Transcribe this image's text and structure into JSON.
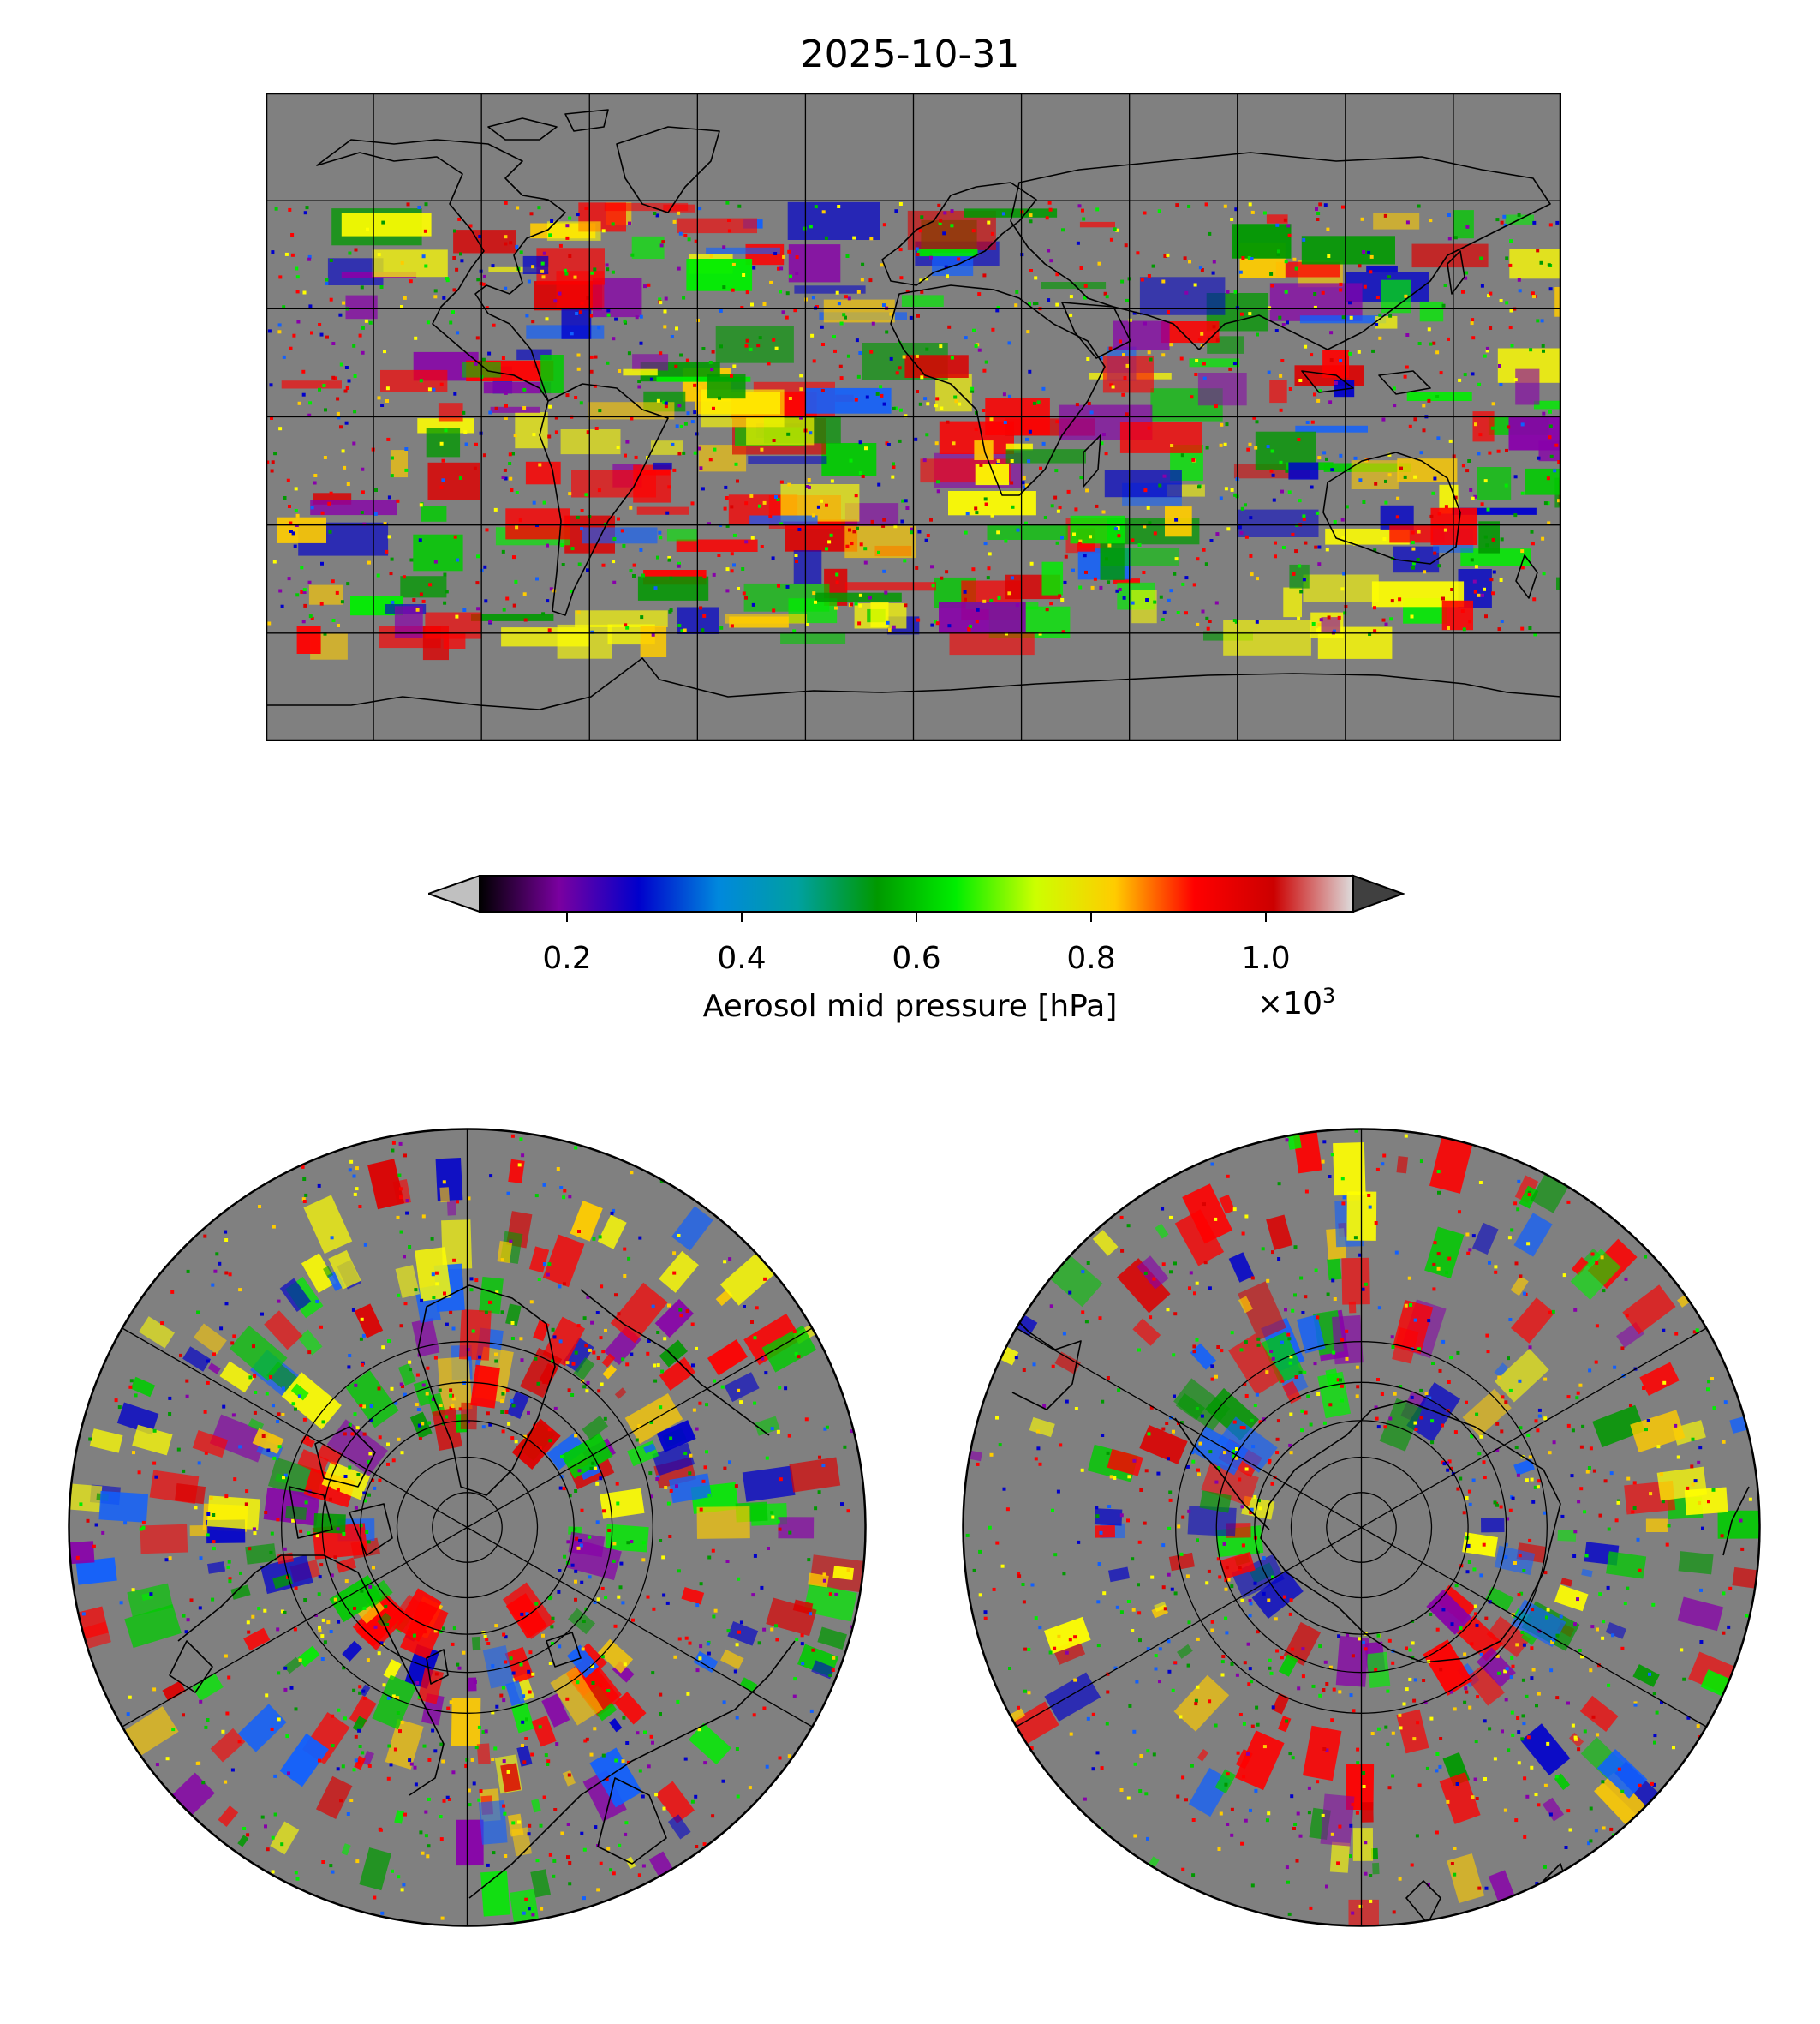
{
  "figure": {
    "title": "2025-10-31"
  },
  "colorbar": {
    "label": "Aerosol mid pressure [hPa]",
    "multiplier_base": "×10",
    "multiplier_exponent": "3",
    "ticks": [
      {
        "value": 0.2,
        "label": "0.2"
      },
      {
        "value": 0.4,
        "label": "0.4"
      },
      {
        "value": 0.6,
        "label": "0.6"
      },
      {
        "value": 0.8,
        "label": "0.8"
      },
      {
        "value": 1.0,
        "label": "1.0"
      }
    ],
    "range": [
      0.1,
      1.1
    ],
    "colormap": [
      "#000000",
      "#7a00a0",
      "#0000cc",
      "#0088dd",
      "#00a0a0",
      "#009900",
      "#00ee00",
      "#ccff00",
      "#ffcc00",
      "#ff0000",
      "#cc0000",
      "#dddddd"
    ],
    "under_color": "#c0c0c0",
    "over_color": "#404040",
    "extend": "both"
  },
  "maps": {
    "background_color": "#808080",
    "coastline_color": "#000000",
    "data_colors": [
      "#ff0000",
      "#ff0000",
      "#dd0000",
      "#ffff00",
      "#ffcc00",
      "#00ee00",
      "#00cc00",
      "#0000cc",
      "#1060ff",
      "#8800aa",
      "#009900"
    ],
    "world": {
      "projection": "PlateCarree",
      "lon_range": [
        -180,
        180
      ],
      "lat_range": [
        -90,
        90
      ],
      "gridline_lons": [
        -150,
        -120,
        -90,
        -60,
        -30,
        0,
        30,
        60,
        90,
        120,
        150
      ],
      "gridline_lats": [
        -60,
        -30,
        0,
        30,
        60
      ]
    },
    "north_polar": {
      "projection": "NorthPolarStereo",
      "lat_circles": [
        80,
        70,
        60,
        50,
        40
      ],
      "meridian_spacing_deg": 60
    },
    "south_polar": {
      "projection": "SouthPolarStereo",
      "lat_circles": [
        -80,
        -70,
        -60,
        -50,
        -40
      ],
      "meridian_spacing_deg": 60
    }
  }
}
